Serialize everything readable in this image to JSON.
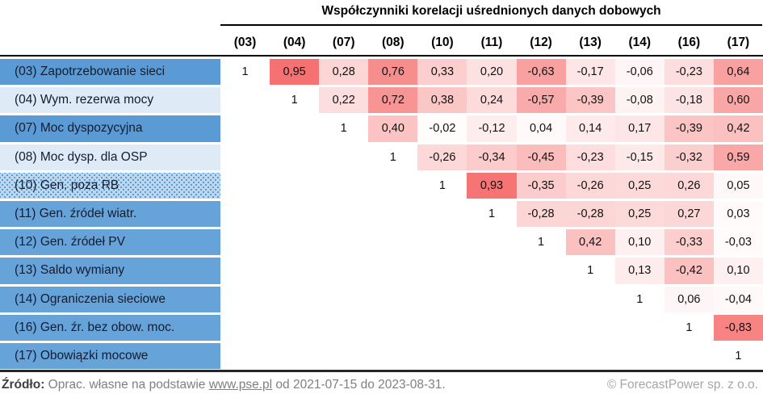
{
  "chart_data": {
    "type": "heatmap",
    "title": "Współczynniki korelacji uśrednionych danych dobowych",
    "columns": [
      "(03)",
      "(04)",
      "(07)",
      "(08)",
      "(10)",
      "(11)",
      "(12)",
      "(13)",
      "(14)",
      "(16)",
      "(17)"
    ],
    "rows": [
      {
        "label": "(03) Zapotrzebowanie sieci",
        "style": "dark",
        "values": [
          "1",
          "0,95",
          "0,28",
          "0,76",
          "0,33",
          "0,20",
          "-0,63",
          "-0,17",
          "-0,06",
          "-0,23",
          "0,64"
        ]
      },
      {
        "label": "(04) Wym. rezerwa mocy",
        "style": "light",
        "values": [
          null,
          "1",
          "0,22",
          "0,72",
          "0,38",
          "0,24",
          "-0,57",
          "-0,39",
          "-0,08",
          "-0,18",
          "0,60"
        ]
      },
      {
        "label": "(07) Moc dyspozycyjna",
        "style": "dark",
        "values": [
          null,
          null,
          "1",
          "0,40",
          "-0,02",
          "-0,12",
          "0,04",
          "0,14",
          "0,17",
          "-0,39",
          "0,42"
        ]
      },
      {
        "label": "(08) Moc dysp. dla OSP",
        "style": "light",
        "values": [
          null,
          null,
          null,
          "1",
          "-0,26",
          "-0,34",
          "-0,45",
          "-0,23",
          "-0,15",
          "-0,32",
          "0,59"
        ]
      },
      {
        "label": "(10) Gen. poza RB",
        "style": "pattern",
        "values": [
          null,
          null,
          null,
          null,
          "1",
          "0,93",
          "-0,35",
          "-0,26",
          "0,25",
          "0,26",
          "0,05"
        ]
      },
      {
        "label": "(11) Gen. źródeł wiatr.",
        "style": "mid",
        "values": [
          null,
          null,
          null,
          null,
          null,
          "1",
          "-0,28",
          "-0,28",
          "0,25",
          "0,27",
          "0,03"
        ]
      },
      {
        "label": "(12) Gen. źródeł PV",
        "style": "mid",
        "values": [
          null,
          null,
          null,
          null,
          null,
          null,
          "1",
          "0,42",
          "0,10",
          "-0,33",
          "-0,03"
        ]
      },
      {
        "label": "(13) Saldo wymiany",
        "style": "mid",
        "values": [
          null,
          null,
          null,
          null,
          null,
          null,
          null,
          "1",
          "0,13",
          "-0,42",
          "0,10"
        ]
      },
      {
        "label": "(14) Ograniczenia sieciowe",
        "style": "mid",
        "values": [
          null,
          null,
          null,
          null,
          null,
          null,
          null,
          null,
          "1",
          "0,06",
          "-0,04"
        ]
      },
      {
        "label": "(16) Gen. źr. bez obow. moc.",
        "style": "mid",
        "values": [
          null,
          null,
          null,
          null,
          null,
          null,
          null,
          null,
          null,
          "1",
          "-0,83"
        ]
      },
      {
        "label": "(17) Obowiązki mocowe",
        "style": "mid",
        "values": [
          null,
          null,
          null,
          null,
          null,
          null,
          null,
          null,
          null,
          null,
          "1"
        ]
      }
    ],
    "color_scale": {
      "min_abs_color": "#FFFFFF",
      "max_abs_color": "#F56A6A",
      "note_colors": {
        "row_dark": "#5B9BD5",
        "row_light": "#DEEAF6",
        "row_mid": "#66A3D9",
        "pattern_base": "#BDD7EE",
        "pattern_dot": "#5B9BD5"
      }
    }
  },
  "footer": {
    "source_label": "Źródło:",
    "source_before_link": " Oprac. własne na podstawie ",
    "source_link": "www.pse.pl",
    "source_after_link": " od 2021-07-15 do 2023-08-31.",
    "copyright": "© ForecastPower sp. z o.o."
  }
}
